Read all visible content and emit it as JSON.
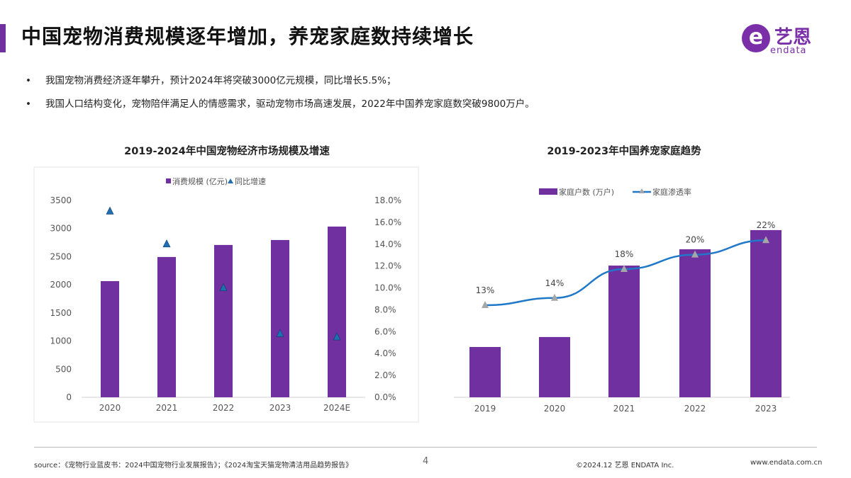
{
  "header": {
    "title": "中国宠物消费规模逐年增加，养宠家庭数持续增长",
    "logo_cn": "艺恩",
    "logo_en": "endata"
  },
  "bullets": [
    "我国宠物消费经济逐年攀升，预计2024年将突破3000亿元规模，同比增长5.5%；",
    "我国人口结构变化，宠物陪伴满足人的情感需求，驱动宠物市场高速发展，2022年中国养宠家庭数突破9800万户。"
  ],
  "bullet_symbol": "•",
  "colors": {
    "bar": "#7030a0",
    "triangle": "#1f6fb2",
    "line": "#1f78c8",
    "marker": "#a6a6a6",
    "accent": "#7030a0"
  },
  "chart_data": [
    {
      "type": "bar",
      "title": "2019-2024年中国宠物经济市场规模及增速",
      "categories": [
        "2020",
        "2021",
        "2022",
        "2023",
        "2024E"
      ],
      "series": [
        {
          "name": "消费规模 (亿元)",
          "type": "bar",
          "axis": "left",
          "values": [
            2065,
            2494,
            2708,
            2796,
            3035
          ]
        },
        {
          "name": "同比增速",
          "type": "scatter-triangle",
          "axis": "right",
          "values": [
            17.0,
            14.0,
            10.0,
            5.8,
            5.5
          ]
        }
      ],
      "ylim_left": [
        0,
        3500
      ],
      "yticks_left": [
        "0",
        "500",
        "1000",
        "1500",
        "2000",
        "2500",
        "3000",
        "3500"
      ],
      "ylim_right": [
        0,
        18
      ],
      "yticks_right": [
        "0.0%",
        "2.0%",
        "4.0%",
        "6.0%",
        "8.0%",
        "10.0%",
        "12.0%",
        "14.0%",
        "16.0%",
        "18.0%"
      ],
      "legend": "top",
      "grid": false
    },
    {
      "type": "bar",
      "title": "2019-2023年中国养宠家庭趋势",
      "categories": [
        "2019",
        "2020",
        "2021",
        "2022",
        "2023"
      ],
      "series": [
        {
          "name": "家庭户数 (万户)",
          "type": "bar",
          "values": [
            3330,
            3990,
            8720,
            9800,
            11070
          ]
        },
        {
          "name": "家庭渗透率",
          "type": "line",
          "values": [
            13,
            14,
            18,
            20,
            22
          ],
          "labels": [
            "13%",
            "14%",
            "18%",
            "20%",
            "22%"
          ]
        }
      ],
      "legend": "top",
      "grid": false
    }
  ],
  "footer": {
    "source": "source：《宠物行业蓝皮书：2024中国宠物行业发展报告》；《2024淘宝天猫宠物清洁用品趋势报告》",
    "page": "4",
    "copyright": "©2024.12 艺恩 ENDATA Inc.",
    "website": "www.endata.com.cn"
  }
}
